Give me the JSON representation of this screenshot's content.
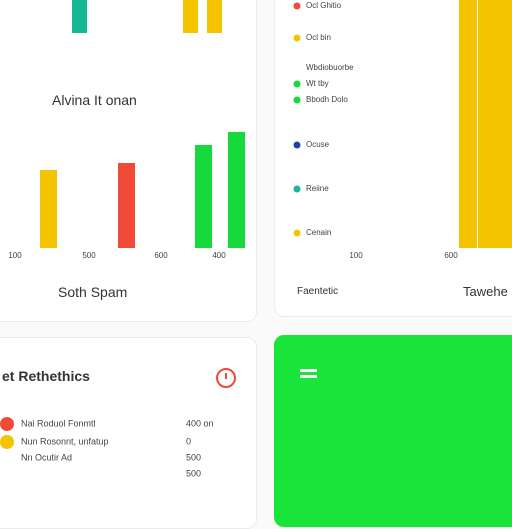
{
  "top_left": {
    "title": "Alvina It onan",
    "footer": "Soth Spam",
    "top_bars": [
      {
        "color": "#16b894",
        "value": 33
      },
      {
        "color": "#f5c400",
        "value": 33
      },
      {
        "color": "#f5c400",
        "value": 33
      }
    ],
    "bars": [
      {
        "color": "#f5c400",
        "value": 78
      },
      {
        "color": "#f04a38",
        "value": 85
      },
      {
        "color": "#16d93c",
        "value": 103
      },
      {
        "color": "#16d93c",
        "value": 116
      }
    ],
    "axis_labels": [
      "100",
      "500",
      "600",
      "400"
    ]
  },
  "top_right": {
    "legend": [
      {
        "label": "Ocl Ghitio",
        "color": "#f04a38"
      },
      {
        "label": "Ocl bin",
        "color": "#f5c400"
      },
      {
        "label": "Wbdiobuorbe",
        "color": null
      },
      {
        "label": "Wt tby",
        "color": "#16d93c"
      },
      {
        "label": "Bbodh Dolo",
        "color": "#16d93c"
      },
      {
        "label": "Ocuse",
        "color": "#2340a8"
      },
      {
        "label": "Reiine",
        "color": "#16b894"
      },
      {
        "label": "Cenain",
        "color": "#f5c400"
      }
    ],
    "bars": [
      {
        "color": "#f5c400",
        "value": 248
      },
      {
        "color": "#f5c400",
        "value": 248
      }
    ],
    "axis_labels": [
      "100",
      "600"
    ],
    "footer_left": "Faentetic",
    "footer_right": "Tawehe"
  },
  "bottom_left": {
    "title": "et Rethethics",
    "rows": [
      {
        "label": "Nai Roduol Fonmtl",
        "value": "400 on",
        "color": "#f04a38"
      },
      {
        "label": "Nun Rosonnt, unfatup",
        "value": "0",
        "color": "#f5c400"
      },
      {
        "label": "Nn Ocutir Ad",
        "value": "500",
        "color": null
      },
      {
        "label": null,
        "value": "500",
        "color": null
      }
    ]
  }
}
